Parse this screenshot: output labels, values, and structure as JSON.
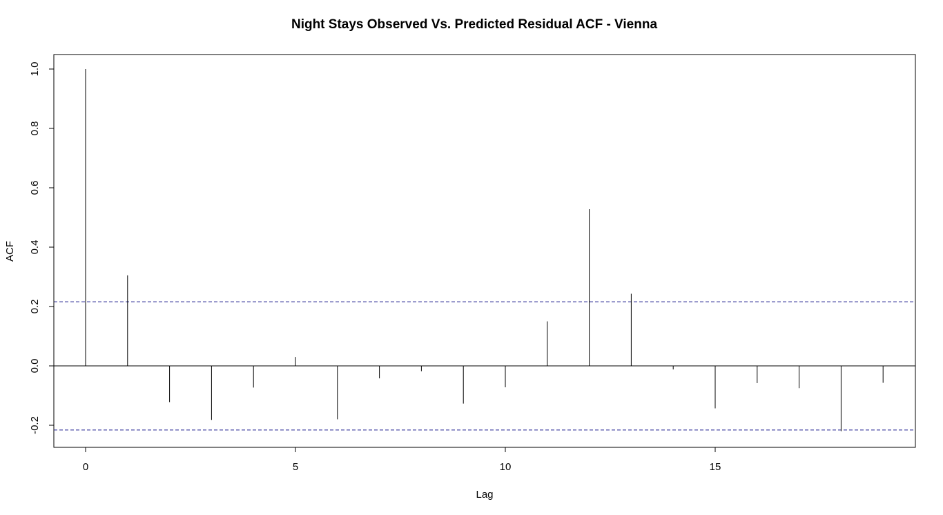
{
  "chart_data": {
    "type": "bar",
    "subtype": "acf",
    "title": "Night Stays Observed Vs. Predicted Residual ACF - Vienna",
    "xlabel": "Lag",
    "ylabel": "ACF",
    "x": [
      0,
      1,
      2,
      3,
      4,
      5,
      6,
      7,
      8,
      9,
      10,
      11,
      12,
      13,
      14,
      15,
      16,
      17,
      18,
      19
    ],
    "values": [
      1.0,
      0.305,
      -0.122,
      -0.182,
      -0.073,
      0.03,
      -0.18,
      -0.042,
      -0.018,
      -0.127,
      -0.072,
      0.15,
      0.528,
      0.243,
      -0.012,
      -0.143,
      -0.058,
      -0.075,
      -0.22,
      -0.057
    ],
    "confidence_bound": 0.216,
    "xlim": [
      -0.75,
      19.75
    ],
    "ylim": [
      -0.275,
      1.0
    ],
    "xticks": [
      "0",
      "5",
      "10",
      "15"
    ],
    "xtick_values": [
      0,
      5,
      10,
      15
    ],
    "yticks": [
      "-0.2",
      "0.0",
      "0.2",
      "0.4",
      "0.6",
      "0.8",
      "1.0"
    ],
    "ytick_values": [
      -0.2,
      0.0,
      0.2,
      0.4,
      0.6,
      0.8,
      1.0
    ],
    "grid": false,
    "legend": "none",
    "colors": {
      "bars": "#000000",
      "zero_line": "#000000",
      "confidence_lines": "#1f1f8f",
      "frame": "#000000"
    }
  }
}
